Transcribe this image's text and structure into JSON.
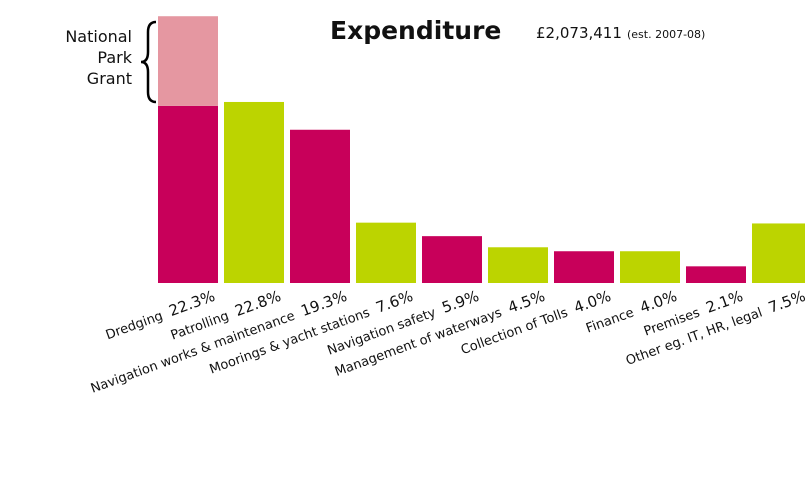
{
  "chart_data": {
    "type": "bar",
    "title": "Expenditure",
    "subtitle": "£2,073,411",
    "note": "(est. 2007-08)",
    "categories": [
      "Dredging",
      "Patrolling",
      "Navigation works & maintenance",
      "Moorings & yacht stations",
      "Navigation safety",
      "Management of waterways",
      "Collection of Tolls",
      "Finance",
      "Premises",
      "Other eg. IT, HR, legal"
    ],
    "values": [
      22.3,
      22.8,
      19.3,
      7.6,
      5.9,
      4.5,
      4.0,
      4.0,
      2.1,
      7.5
    ],
    "value_labels": [
      "22.3%",
      "22.8%",
      "19.3%",
      "7.6%",
      "5.9%",
      "4.5%",
      "4.0%",
      "4.0%",
      "2.1%",
      "7.5%"
    ],
    "colors": [
      "#c8005a",
      "#bcd400",
      "#c8005a",
      "#bcd400",
      "#c8005a",
      "#bcd400",
      "#c8005a",
      "#bcd400",
      "#c8005a",
      "#bcd400"
    ],
    "grant": {
      "label": [
        "National",
        "Park",
        "Grant"
      ],
      "value": 11.3,
      "color": "#e597a1"
    }
  }
}
